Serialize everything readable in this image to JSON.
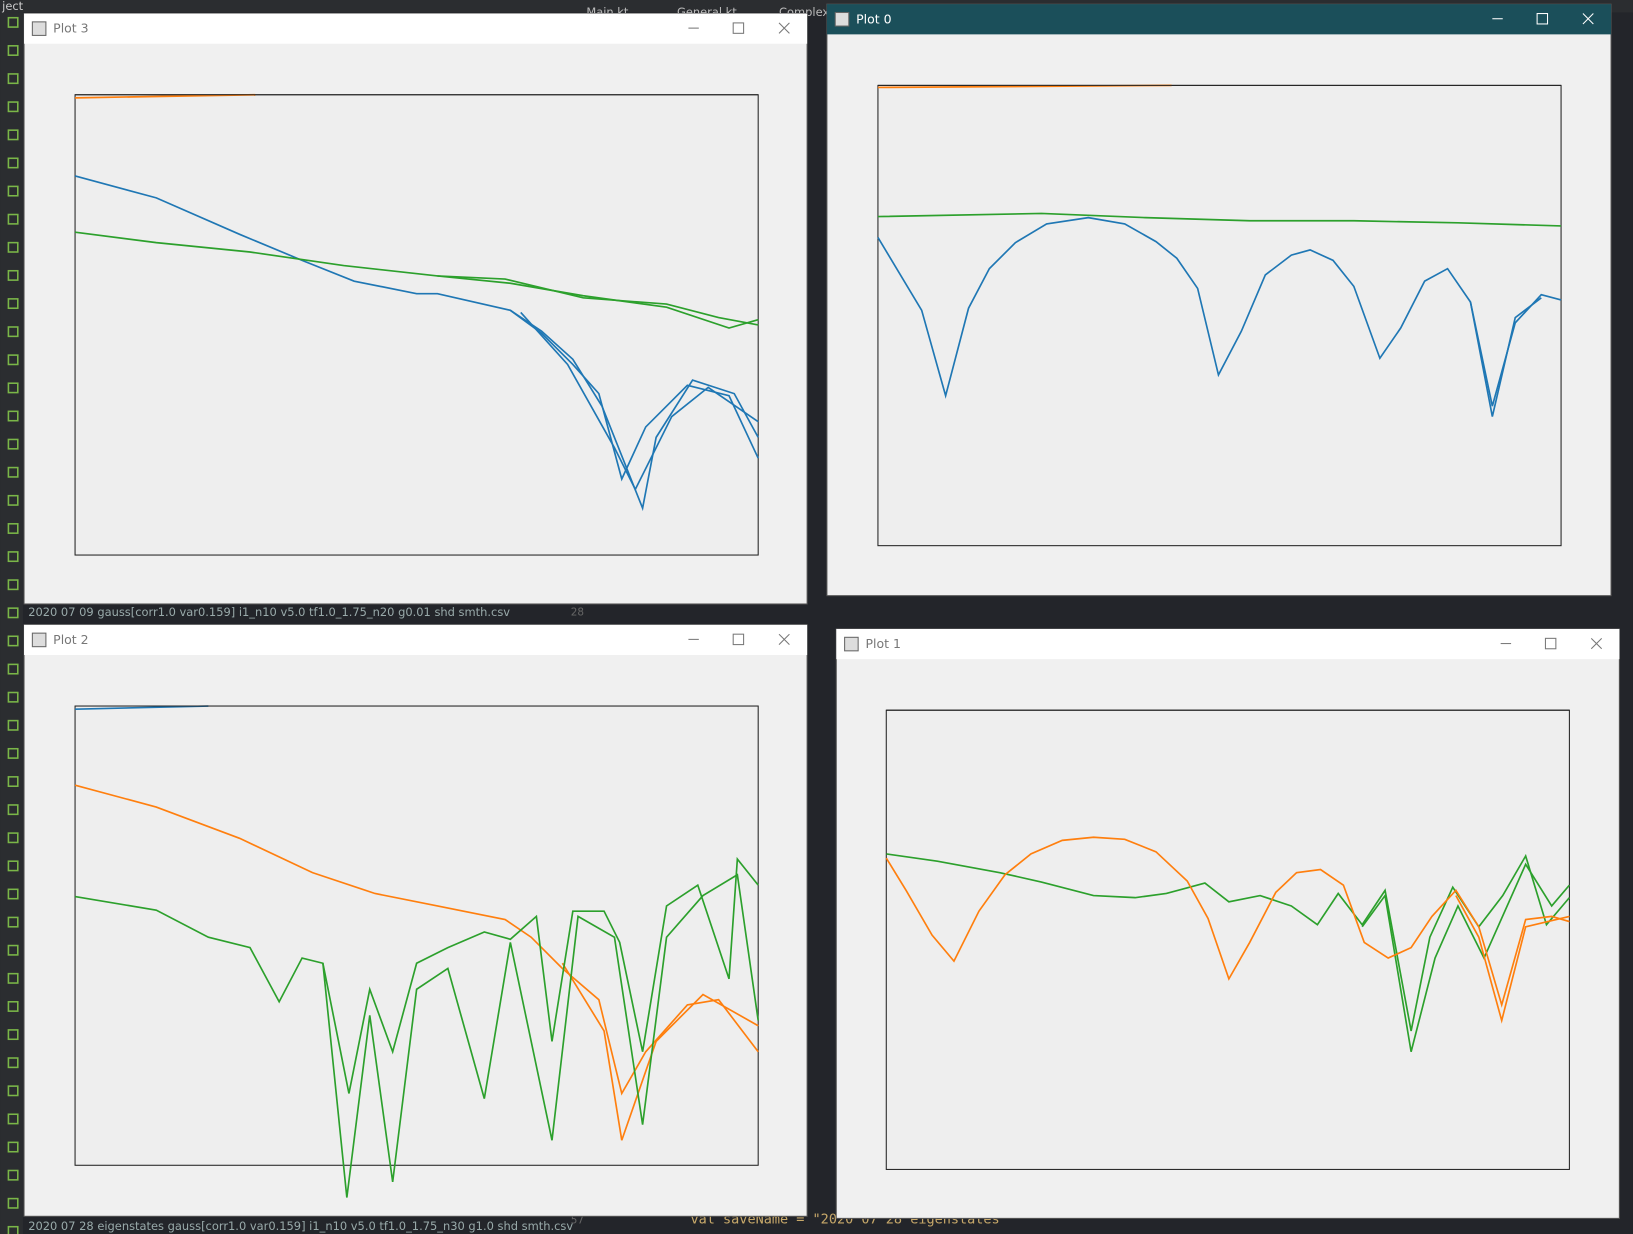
{
  "ide": {
    "menu": "ject",
    "tabs": [
      "Main.kt",
      "General.kt",
      "Complex"
    ],
    "line_numbers": [
      "28",
      "57"
    ],
    "code": "val saveName = \"2020 07 28 eigenstates"
  },
  "windows": [
    {
      "title": "Plot 3"
    },
    {
      "title": "Plot 0"
    },
    {
      "title": "Plot 2"
    },
    {
      "title": "Plot 1"
    }
  ],
  "status_lines": [
    "2020 07 09 gauss[corr1.0 var0.159] i1_n10 v5.0 tf1.0_1.75_n20 g0.01 shd smth.csv",
    "2020 07 28 eigenstates gauss[corr1.0 var0.159] i1_n10 v5.0 tf1.0_1.75_n30 g1.0 shd smth.csv"
  ]
}
